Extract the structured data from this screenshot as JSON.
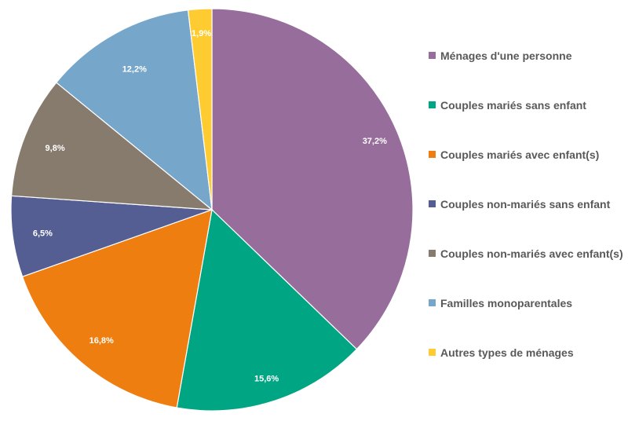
{
  "chart_data": {
    "type": "pie",
    "title": "",
    "legend_position": "right",
    "categories": [
      " Ménages d'une personne",
      "Couples mariés sans enfant",
      "Couples mariés avec enfant(s)",
      "Couples non-mariés sans enfant",
      "Couples non-mariés avec enfant(s)",
      "Familles monoparentales",
      "Autres types de ménages"
    ],
    "values": [
      37.2,
      15.6,
      16.8,
      6.5,
      9.8,
      12.2,
      1.9
    ],
    "value_labels": [
      "37,2%",
      "15,6%",
      "16,8%",
      "6,5%",
      "9,8%",
      "12,2%",
      "1,9%"
    ],
    "colors": [
      "#976d9b",
      "#00a683",
      "#ee7e10",
      "#545e93",
      "#877b6e",
      "#76a6c9",
      "#fecc30"
    ],
    "unit": "%"
  }
}
